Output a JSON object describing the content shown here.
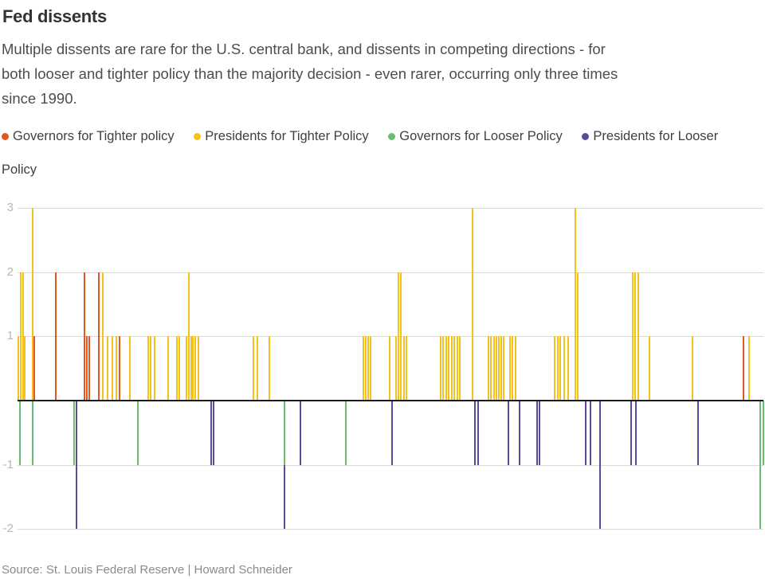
{
  "header": {
    "title": "Fed dissents",
    "subtitle_lines": [
      "Multiple dissents are rare for the U.S. central bank, and dissents in competing directions - for",
      "both looser and tighter policy than the majority decision - even rarer, occurring only three times",
      "since 1990."
    ]
  },
  "legend": {
    "items": [
      {
        "key": "gov_tighter",
        "label": "Governors for Tighter policy",
        "color": "#e4571f"
      },
      {
        "key": "pres_tighter",
        "label": "Presidents for Tighter Policy",
        "color": "#f4c21d"
      },
      {
        "key": "gov_looser",
        "label": "Governors for Looser Policy",
        "color": "#6bbd74"
      },
      {
        "key": "pres_looser",
        "label": "Presidents for Looser Policy",
        "color": "#5c4a9e"
      }
    ]
  },
  "source": "Source: St. Louis Federal Reserve | Howard Schneider",
  "chart_data": {
    "type": "bar",
    "title": "Fed dissents",
    "xlabel": "",
    "ylabel": "",
    "x_tick_labels": [],
    "yticks": [
      3,
      2,
      1,
      -1,
      -2
    ],
    "ylim": [
      -2.35,
      3.1
    ],
    "grid": true,
    "legend_position": "top",
    "series": [
      {
        "key": "gov_tighter",
        "name": "Governors for Tighter policy"
      },
      {
        "key": "pres_tighter",
        "name": "Presidents for Tighter Policy"
      },
      {
        "key": "gov_looser",
        "name": "Governors for Looser Policy"
      },
      {
        "key": "pres_looser",
        "name": "Presidents for Looser Policy"
      }
    ],
    "series_colors": {
      "gov_tighter": "#e4571f",
      "pres_tighter": "#f4c21d",
      "gov_looser": "#6bbd74",
      "pres_looser": "#5c4a9e"
    },
    "bar_format": [
      "x_px",
      "value_from",
      "value_to",
      "series_key"
    ],
    "bars": [
      [
        23,
        0,
        1,
        "pres_tighter"
      ],
      [
        26,
        0,
        2,
        "pres_tighter"
      ],
      [
        29,
        0,
        2,
        "pres_tighter"
      ],
      [
        31,
        0,
        1,
        "pres_tighter"
      ],
      [
        41,
        0,
        3,
        "pres_tighter"
      ],
      [
        43,
        0,
        1,
        "gov_tighter"
      ],
      [
        70,
        0,
        2,
        "gov_tighter"
      ],
      [
        106,
        0,
        2,
        "gov_tighter"
      ],
      [
        109,
        0,
        1,
        "gov_tighter"
      ],
      [
        112,
        0,
        1,
        "gov_tighter"
      ],
      [
        124,
        0,
        2,
        "gov_tighter"
      ],
      [
        129,
        0,
        2,
        "pres_tighter"
      ],
      [
        135,
        0,
        1,
        "pres_tighter"
      ],
      [
        141,
        0,
        1,
        "pres_tighter"
      ],
      [
        146,
        0,
        1,
        "pres_tighter"
      ],
      [
        150,
        0,
        1,
        "gov_tighter"
      ],
      [
        163,
        0,
        1,
        "pres_tighter"
      ],
      [
        186,
        0,
        1,
        "pres_tighter"
      ],
      [
        189,
        0,
        1,
        "pres_tighter"
      ],
      [
        194,
        0,
        1,
        "pres_tighter"
      ],
      [
        211,
        0,
        1,
        "pres_tighter"
      ],
      [
        222,
        0,
        1,
        "pres_tighter"
      ],
      [
        225,
        0,
        1,
        "pres_tighter"
      ],
      [
        234,
        0,
        1,
        "pres_tighter"
      ],
      [
        237,
        0,
        2,
        "pres_tighter"
      ],
      [
        240,
        0,
        1,
        "pres_tighter"
      ],
      [
        242,
        0,
        1,
        "pres_tighter"
      ],
      [
        245,
        0,
        1,
        "pres_tighter"
      ],
      [
        249,
        0,
        1,
        "pres_tighter"
      ],
      [
        318,
        0,
        1,
        "pres_tighter"
      ],
      [
        323,
        0,
        1,
        "pres_tighter"
      ],
      [
        338,
        0,
        1,
        "pres_tighter"
      ],
      [
        456,
        0,
        1,
        "pres_tighter"
      ],
      [
        459,
        0,
        1,
        "pres_tighter"
      ],
      [
        462,
        0,
        1,
        "pres_tighter"
      ],
      [
        465,
        0,
        1,
        "pres_tighter"
      ],
      [
        489,
        0,
        1,
        "pres_tighter"
      ],
      [
        497,
        0,
        1,
        "pres_tighter"
      ],
      [
        500,
        0,
        2,
        "pres_tighter"
      ],
      [
        503,
        0,
        2,
        "pres_tighter"
      ],
      [
        507,
        0,
        1,
        "pres_tighter"
      ],
      [
        510,
        0,
        1,
        "pres_tighter"
      ],
      [
        553,
        0,
        1,
        "pres_tighter"
      ],
      [
        556,
        0,
        1,
        "pres_tighter"
      ],
      [
        560,
        0,
        1,
        "pres_tighter"
      ],
      [
        563,
        0,
        1,
        "pres_tighter"
      ],
      [
        567,
        0,
        1,
        "pres_tighter"
      ],
      [
        570,
        0,
        1,
        "pres_tighter"
      ],
      [
        574,
        0,
        1,
        "pres_tighter"
      ],
      [
        577,
        0,
        1,
        "pres_tighter"
      ],
      [
        593,
        0,
        3,
        "pres_tighter"
      ],
      [
        613,
        0,
        1,
        "pres_tighter"
      ],
      [
        616,
        0,
        1,
        "pres_tighter"
      ],
      [
        620,
        0,
        1,
        "pres_tighter"
      ],
      [
        623,
        0,
        1,
        "pres_tighter"
      ],
      [
        626,
        0,
        1,
        "pres_tighter"
      ],
      [
        629,
        0,
        1,
        "pres_tighter"
      ],
      [
        632,
        0,
        1,
        "pres_tighter"
      ],
      [
        640,
        0,
        1,
        "pres_tighter"
      ],
      [
        643,
        0,
        1,
        "pres_tighter"
      ],
      [
        647,
        0,
        1,
        "pres_tighter"
      ],
      [
        696,
        0,
        1,
        "pres_tighter"
      ],
      [
        700,
        0,
        1,
        "pres_tighter"
      ],
      [
        703,
        0,
        1,
        "pres_tighter"
      ],
      [
        708,
        0,
        1,
        "pres_tighter"
      ],
      [
        713,
        0,
        1,
        "pres_tighter"
      ],
      [
        722,
        0,
        3,
        "pres_tighter"
      ],
      [
        725,
        0,
        2,
        "pres_tighter"
      ],
      [
        794,
        0,
        2,
        "pres_tighter"
      ],
      [
        797,
        0,
        2,
        "pres_tighter"
      ],
      [
        801,
        0,
        2,
        "pres_tighter"
      ],
      [
        815,
        0,
        1,
        "pres_tighter"
      ],
      [
        869,
        0,
        1,
        "pres_tighter"
      ],
      [
        933,
        0,
        1,
        "gov_tighter"
      ],
      [
        940,
        0,
        1,
        "pres_tighter"
      ],
      [
        25,
        0,
        -1,
        "gov_looser"
      ],
      [
        41,
        0,
        -1,
        "gov_looser"
      ],
      [
        93,
        0,
        -1,
        "gov_looser"
      ],
      [
        96,
        0,
        -2,
        "pres_looser"
      ],
      [
        173,
        0,
        -1,
        "gov_looser"
      ],
      [
        265,
        0,
        -1,
        "pres_looser"
      ],
      [
        268,
        0,
        -1,
        "pres_looser"
      ],
      [
        357,
        0,
        -1,
        "gov_looser"
      ],
      [
        357,
        -1,
        -2,
        "pres_looser"
      ],
      [
        377,
        0,
        -1,
        "pres_looser"
      ],
      [
        434,
        0,
        -1,
        "gov_looser"
      ],
      [
        492,
        0,
        -1,
        "pres_looser"
      ],
      [
        596,
        0,
        -1,
        "pres_looser"
      ],
      [
        600,
        0,
        -1,
        "pres_looser"
      ],
      [
        638,
        0,
        -1,
        "pres_looser"
      ],
      [
        652,
        0,
        -1,
        "pres_looser"
      ],
      [
        674,
        0,
        -1,
        "pres_looser"
      ],
      [
        677,
        0,
        -1,
        "pres_looser"
      ],
      [
        735,
        0,
        -1,
        "pres_looser"
      ],
      [
        741,
        0,
        -1,
        "pres_looser"
      ],
      [
        753,
        0,
        -2,
        "pres_looser"
      ],
      [
        792,
        0,
        -1,
        "pres_looser"
      ],
      [
        798,
        0,
        -1,
        "pres_looser"
      ],
      [
        876,
        0,
        -1,
        "pres_looser"
      ],
      [
        954,
        0,
        -2,
        "gov_looser"
      ],
      [
        958,
        0,
        -1,
        "gov_looser"
      ]
    ]
  }
}
